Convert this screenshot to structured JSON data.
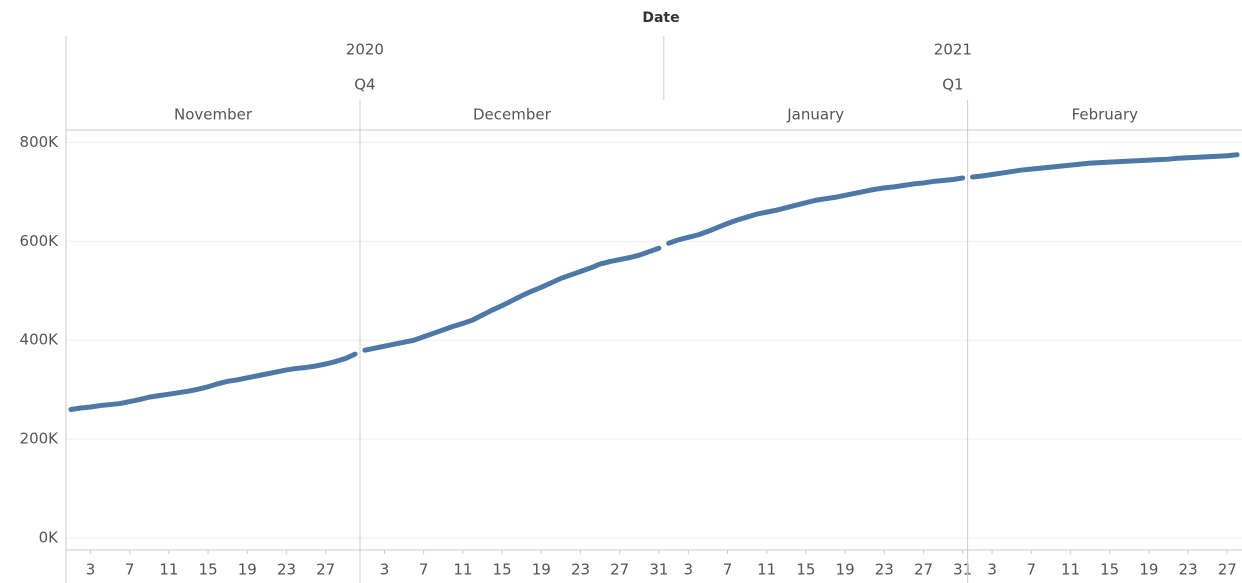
{
  "chart_data": {
    "type": "line",
    "title": "Date",
    "color": "#4e79a7",
    "grid": true,
    "ylim": [
      -24000,
      825000
    ],
    "yticks": [
      {
        "value": 0,
        "label": "0K"
      },
      {
        "value": 200000,
        "label": "200K"
      },
      {
        "value": 400000,
        "label": "400K"
      },
      {
        "value": 600000,
        "label": "600K"
      },
      {
        "value": 800000,
        "label": "800K"
      }
    ],
    "years": [
      {
        "label": "2020",
        "quarter": "Q4",
        "months": [
          {
            "name": "November",
            "xlim": [
              0.5,
              30.5
            ],
            "x": [
              1,
              2,
              3,
              4,
              5,
              6,
              7,
              8,
              9,
              10,
              11,
              12,
              13,
              14,
              15,
              16,
              17,
              18,
              19,
              20,
              21,
              22,
              23,
              24,
              25,
              26,
              27,
              28,
              29,
              30
            ],
            "xticks": [
              3,
              7,
              11,
              15,
              19,
              23,
              27
            ],
            "values": [
              260000,
              263000,
              265000,
              268000,
              270000,
              272000,
              276000,
              280000,
              285000,
              288000,
              291000,
              294000,
              297000,
              301000,
              306000,
              312000,
              317000,
              320000,
              324000,
              328000,
              332000,
              336000,
              340000,
              343000,
              345000,
              348000,
              352000,
              357000,
              363000,
              372000
            ]
          },
          {
            "name": "December",
            "xlim": [
              0.5,
              31.5
            ],
            "x": [
              1,
              2,
              3,
              4,
              5,
              6,
              7,
              8,
              9,
              10,
              11,
              12,
              13,
              14,
              15,
              16,
              17,
              18,
              19,
              20,
              21,
              22,
              23,
              24,
              25,
              26,
              27,
              28,
              29,
              30,
              31
            ],
            "xticks": [
              3,
              7,
              11,
              15,
              19,
              23,
              27,
              31
            ],
            "values": [
              380000,
              384000,
              388000,
              392000,
              396000,
              400000,
              407000,
              414000,
              421000,
              428000,
              434000,
              441000,
              451000,
              461000,
              470000,
              480000,
              490000,
              499000,
              507000,
              516000,
              525000,
              532000,
              539000,
              546000,
              554000,
              559000,
              563000,
              567000,
              572000,
              579000,
              586000
            ]
          }
        ]
      },
      {
        "label": "2021",
        "quarter": "Q1",
        "months": [
          {
            "name": "January",
            "xlim": [
              0.5,
              31.5
            ],
            "x": [
              1,
              2,
              3,
              4,
              5,
              6,
              7,
              8,
              9,
              10,
              11,
              12,
              13,
              14,
              15,
              16,
              17,
              18,
              19,
              20,
              21,
              22,
              23,
              24,
              25,
              26,
              27,
              28,
              29,
              30,
              31
            ],
            "xticks": [
              3,
              7,
              11,
              15,
              19,
              23,
              27,
              31
            ],
            "values": [
              596000,
              603000,
              608000,
              613000,
              620000,
              628000,
              636000,
              643000,
              649000,
              655000,
              659000,
              663000,
              668000,
              673000,
              678000,
              683000,
              686000,
              689000,
              693000,
              697000,
              701000,
              705000,
              708000,
              710000,
              713000,
              716000,
              718000,
              721000,
              723000,
              725000,
              728000
            ]
          },
          {
            "name": "February",
            "xlim": [
              0.5,
              28.5
            ],
            "x": [
              1,
              2,
              3,
              4,
              5,
              6,
              7,
              8,
              9,
              10,
              11,
              12,
              13,
              14,
              15,
              16,
              17,
              18,
              19,
              20,
              21,
              22,
              23,
              24,
              25,
              26,
              27,
              28
            ],
            "xticks": [
              3,
              7,
              11,
              15,
              19,
              23,
              27
            ],
            "values": [
              730000,
              732000,
              735000,
              738000,
              741000,
              744000,
              746000,
              748000,
              750000,
              752000,
              754000,
              756000,
              758000,
              759000,
              760000,
              761000,
              762000,
              763000,
              764000,
              765000,
              766000,
              768000,
              769000,
              770000,
              771000,
              772000,
              773000,
              775000
            ]
          }
        ]
      }
    ]
  }
}
